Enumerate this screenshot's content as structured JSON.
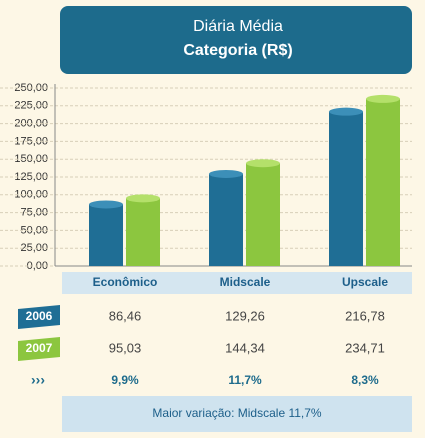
{
  "chart_data": {
    "type": "bar",
    "title": "Diária Média",
    "subtitle": "Categoria (R$)",
    "categories": [
      "Econômico",
      "Midscale",
      "Upscale"
    ],
    "series": [
      {
        "name": "2006",
        "color": "#1f6e95",
        "values": [
          86.46,
          129.26,
          216.78
        ],
        "value_labels": [
          "86,46",
          "129,26",
          "216,78"
        ]
      },
      {
        "name": "2007",
        "color": "#8cc63f",
        "values": [
          95.03,
          144.34,
          234.71
        ],
        "value_labels": [
          "95,03",
          "144,34",
          "234,71"
        ]
      }
    ],
    "variation": {
      "values": [
        9.9,
        11.7,
        8.3
      ],
      "value_labels": [
        "9,9%",
        "11,7%",
        "8,3%"
      ]
    },
    "note": "Maior variação: Midscale 11,7%",
    "ylim": [
      0,
      250
    ],
    "yticks": [
      {
        "value": 0,
        "label": "0,00"
      },
      {
        "value": 25,
        "label": "25,00"
      },
      {
        "value": 50,
        "label": "50,00"
      },
      {
        "value": 75,
        "label": "75,00"
      },
      {
        "value": 100,
        "label": "100,00"
      },
      {
        "value": 125,
        "label": "125,00"
      },
      {
        "value": 150,
        "label": "150,00"
      },
      {
        "value": 175,
        "label": "175,00"
      },
      {
        "value": 200,
        "label": "200,00"
      },
      {
        "value": 225,
        "label": "225,00"
      },
      {
        "value": 250,
        "label": "250,00"
      }
    ],
    "grid": true
  }
}
